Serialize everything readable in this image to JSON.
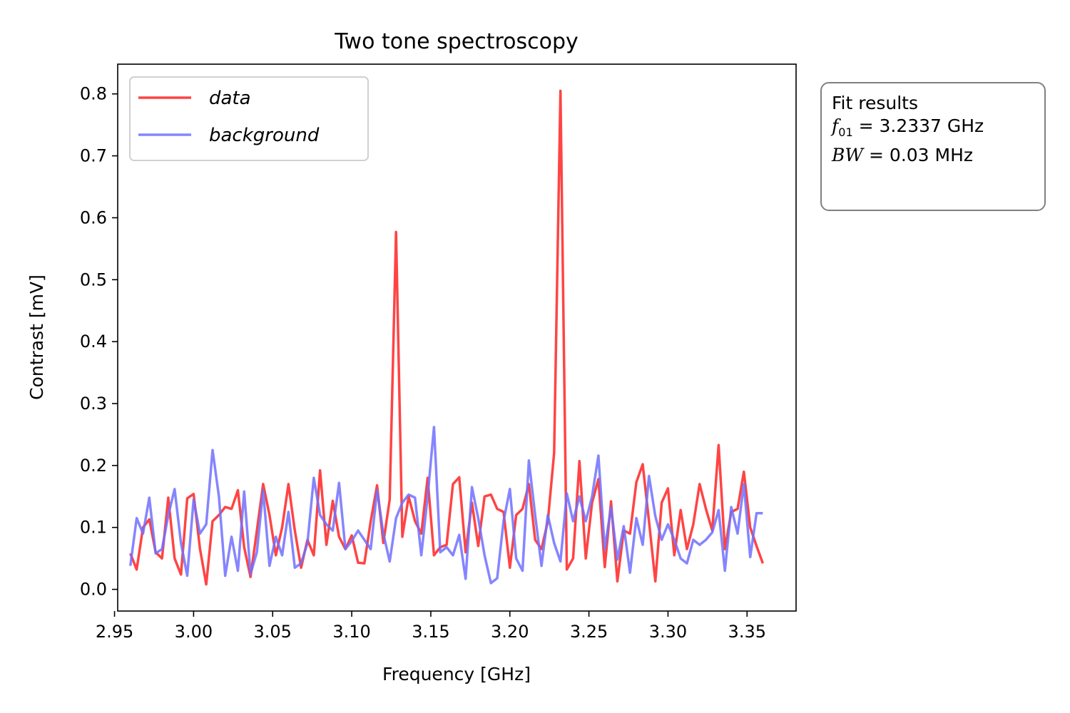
{
  "chart_data": {
    "type": "line",
    "title": "Two tone spectroscopy",
    "xlabel": "Frequency [GHz]",
    "ylabel": "Contrast [mV]",
    "xlim": [
      2.952,
      3.381
    ],
    "ylim": [
      -0.035,
      0.848
    ],
    "xticks": [
      2.95,
      3.0,
      3.05,
      3.1,
      3.15,
      3.2,
      3.25,
      3.3,
      3.35
    ],
    "xtick_labels": [
      "2.95",
      "3.00",
      "3.05",
      "3.10",
      "3.15",
      "3.20",
      "3.25",
      "3.30",
      "3.35"
    ],
    "yticks": [
      0.0,
      0.1,
      0.2,
      0.3,
      0.4,
      0.5,
      0.6,
      0.7,
      0.8
    ],
    "ytick_labels": [
      "0.0",
      "0.1",
      "0.2",
      "0.3",
      "0.4",
      "0.5",
      "0.6",
      "0.7",
      "0.8"
    ],
    "grid": false,
    "legend_position": "upper-left",
    "series": [
      {
        "name": "data",
        "color": "#ff3030",
        "x": [
          2.96,
          2.964,
          2.968,
          2.972,
          2.976,
          2.98,
          2.984,
          2.988,
          2.992,
          2.996,
          3.0,
          3.004,
          3.008,
          3.012,
          3.016,
          3.02,
          3.024,
          3.028,
          3.032,
          3.036,
          3.04,
          3.044,
          3.048,
          3.052,
          3.056,
          3.06,
          3.064,
          3.068,
          3.072,
          3.076,
          3.08,
          3.084,
          3.088,
          3.092,
          3.096,
          3.1,
          3.104,
          3.108,
          3.112,
          3.116,
          3.12,
          3.124,
          3.128,
          3.132,
          3.136,
          3.14,
          3.144,
          3.148,
          3.152,
          3.156,
          3.16,
          3.164,
          3.168,
          3.172,
          3.176,
          3.18,
          3.184,
          3.188,
          3.192,
          3.196,
          3.2,
          3.204,
          3.208,
          3.212,
          3.216,
          3.22,
          3.224,
          3.228,
          3.232,
          3.236,
          3.24,
          3.244,
          3.248,
          3.252,
          3.256,
          3.26,
          3.264,
          3.268,
          3.272,
          3.276,
          3.28,
          3.284,
          3.288,
          3.292,
          3.296,
          3.3,
          3.304,
          3.308,
          3.312,
          3.316,
          3.32,
          3.324,
          3.328,
          3.332,
          3.336,
          3.34,
          3.344,
          3.348,
          3.352,
          3.356,
          3.36
        ],
        "y": [
          0.058,
          0.032,
          0.1,
          0.113,
          0.06,
          0.05,
          0.148,
          0.05,
          0.024,
          0.147,
          0.154,
          0.066,
          0.008,
          0.11,
          0.12,
          0.133,
          0.13,
          0.16,
          0.068,
          0.02,
          0.095,
          0.17,
          0.12,
          0.055,
          0.1,
          0.17,
          0.095,
          0.035,
          0.08,
          0.055,
          0.192,
          0.072,
          0.143,
          0.085,
          0.065,
          0.087,
          0.043,
          0.042,
          0.11,
          0.168,
          0.075,
          0.145,
          0.577,
          0.085,
          0.15,
          0.11,
          0.09,
          0.18,
          0.055,
          0.068,
          0.072,
          0.17,
          0.181,
          0.06,
          0.14,
          0.07,
          0.15,
          0.153,
          0.13,
          0.125,
          0.035,
          0.12,
          0.13,
          0.17,
          0.08,
          0.065,
          0.11,
          0.22,
          0.805,
          0.032,
          0.05,
          0.207,
          0.05,
          0.14,
          0.178,
          0.036,
          0.142,
          0.013,
          0.095,
          0.09,
          0.173,
          0.202,
          0.11,
          0.013,
          0.14,
          0.163,
          0.055,
          0.128,
          0.065,
          0.105,
          0.17,
          0.13,
          0.095,
          0.233,
          0.065,
          0.125,
          0.13,
          0.19,
          0.1,
          0.07,
          0.042
        ]
      },
      {
        "name": "background",
        "color": "#7070ff",
        "x": [
          2.96,
          2.964,
          2.968,
          2.972,
          2.976,
          2.98,
          2.984,
          2.988,
          2.992,
          2.996,
          3.0,
          3.004,
          3.008,
          3.012,
          3.016,
          3.02,
          3.024,
          3.028,
          3.032,
          3.036,
          3.04,
          3.044,
          3.048,
          3.052,
          3.056,
          3.06,
          3.064,
          3.068,
          3.072,
          3.076,
          3.08,
          3.084,
          3.088,
          3.092,
          3.096,
          3.1,
          3.104,
          3.108,
          3.112,
          3.116,
          3.12,
          3.124,
          3.128,
          3.132,
          3.136,
          3.14,
          3.144,
          3.148,
          3.152,
          3.156,
          3.16,
          3.164,
          3.168,
          3.172,
          3.176,
          3.18,
          3.184,
          3.188,
          3.192,
          3.196,
          3.2,
          3.204,
          3.208,
          3.212,
          3.216,
          3.22,
          3.224,
          3.228,
          3.232,
          3.236,
          3.24,
          3.244,
          3.248,
          3.252,
          3.256,
          3.26,
          3.264,
          3.268,
          3.272,
          3.276,
          3.28,
          3.284,
          3.288,
          3.292,
          3.296,
          3.3,
          3.304,
          3.308,
          3.312,
          3.316,
          3.32,
          3.324,
          3.328,
          3.332,
          3.336,
          3.34,
          3.344,
          3.348,
          3.352,
          3.356,
          3.36
        ],
        "y": [
          0.038,
          0.115,
          0.09,
          0.148,
          0.058,
          0.065,
          0.12,
          0.162,
          0.075,
          0.022,
          0.145,
          0.09,
          0.105,
          0.225,
          0.15,
          0.022,
          0.085,
          0.03,
          0.158,
          0.025,
          0.06,
          0.16,
          0.038,
          0.085,
          0.055,
          0.125,
          0.035,
          0.042,
          0.075,
          0.18,
          0.12,
          0.105,
          0.095,
          0.172,
          0.065,
          0.078,
          0.095,
          0.08,
          0.065,
          0.16,
          0.09,
          0.045,
          0.115,
          0.14,
          0.153,
          0.148,
          0.055,
          0.15,
          0.262,
          0.06,
          0.068,
          0.055,
          0.088,
          0.017,
          0.165,
          0.115,
          0.055,
          0.01,
          0.018,
          0.11,
          0.162,
          0.05,
          0.03,
          0.208,
          0.12,
          0.038,
          0.12,
          0.075,
          0.045,
          0.155,
          0.11,
          0.15,
          0.11,
          0.15,
          0.216,
          0.065,
          0.133,
          0.048,
          0.102,
          0.027,
          0.115,
          0.072,
          0.183,
          0.118,
          0.08,
          0.105,
          0.08,
          0.05,
          0.042,
          0.08,
          0.072,
          0.08,
          0.092,
          0.128,
          0.03,
          0.133,
          0.09,
          0.17,
          0.052,
          0.123,
          0.123
        ]
      }
    ]
  },
  "legend": {
    "data_label": "data",
    "background_label": "background"
  },
  "fit_box": {
    "heading": "Fit results",
    "f01_symbol": "f",
    "f01_subscript": "01",
    "f01_value": " = 3.2337 GHz",
    "bw_symbol": "BW",
    "bw_value": " = 0.03 MHz"
  }
}
